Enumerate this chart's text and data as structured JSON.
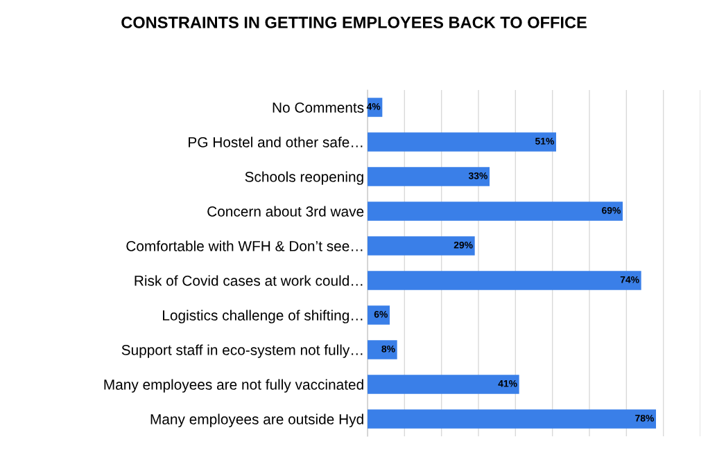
{
  "chart_data": {
    "type": "bar",
    "orientation": "horizontal",
    "title": "CONSTRAINTS IN GETTING EMPLOYEES BACK TO OFFICE",
    "categories": [
      "No Comments",
      "PG Hostel and other safe…",
      "Schools reopening",
      "Concern about 3rd wave",
      "Comfortable with WFH & Don’t see…",
      "Risk of Covid cases at work could…",
      "Logistics challenge of shifting…",
      "Support staff in eco-system not fully…",
      "Many employees are not fully vaccinated",
      "Many employees are outside Hyd"
    ],
    "values": [
      4,
      51,
      33,
      69,
      29,
      74,
      6,
      8,
      41,
      78
    ],
    "value_labels": [
      "4%",
      "51%",
      "33%",
      "69%",
      "29%",
      "74%",
      "6%",
      "8%",
      "41%",
      "78%"
    ],
    "color": "#3a7fe8",
    "xlim": [
      0,
      90
    ],
    "xticks": [
      {
        "value": 0,
        "label": null
      },
      {
        "value": 10,
        "label": null
      },
      {
        "value": 20,
        "label": null
      },
      {
        "value": 30,
        "label": null
      },
      {
        "value": 40,
        "label": null
      },
      {
        "value": 50,
        "label": null
      },
      {
        "value": 60,
        "label": null
      },
      {
        "value": 70,
        "label": null
      },
      {
        "value": 80,
        "label": null
      },
      {
        "value": 90,
        "label": null
      }
    ],
    "grid": "x",
    "legend": false
  }
}
